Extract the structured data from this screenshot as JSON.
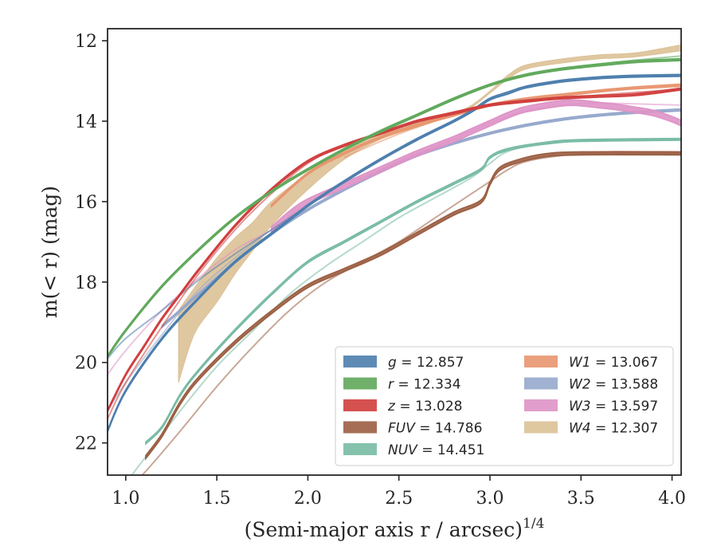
{
  "chart_data": {
    "type": "line",
    "xlabel": "(Semi-major axis r / arcsec)",
    "xlabel_exponent": "1/4",
    "ylabel": "m(< r) (mag)",
    "xlim": [
      0.9,
      4.05
    ],
    "ylim": [
      22.8,
      11.7
    ],
    "y_inverted": true,
    "grid": false,
    "legend_placement": "lower-right",
    "xticks": [
      "1.0",
      "1.5",
      "2.0",
      "2.5",
      "3.0",
      "3.5",
      "4.0"
    ],
    "yticks": [
      "12",
      "14",
      "16",
      "18",
      "20",
      "22"
    ],
    "series": [
      {
        "name": "g",
        "label": "= 12.857",
        "color": "#4c7ead",
        "band_width": 0.05,
        "main": [
          [
            0.9,
            21.7
          ],
          [
            1.0,
            20.7
          ],
          [
            1.2,
            19.4
          ],
          [
            1.4,
            18.4
          ],
          [
            1.6,
            17.5
          ],
          [
            1.8,
            16.8
          ],
          [
            2.0,
            16.1
          ],
          [
            2.2,
            15.5
          ],
          [
            2.4,
            14.95
          ],
          [
            2.6,
            14.45
          ],
          [
            2.8,
            14.0
          ],
          [
            2.9,
            13.75
          ],
          [
            3.0,
            13.45
          ],
          [
            3.1,
            13.3
          ],
          [
            3.2,
            13.15
          ],
          [
            3.4,
            13.0
          ],
          [
            3.6,
            12.92
          ],
          [
            3.8,
            12.88
          ],
          [
            4.05,
            12.86
          ]
        ],
        "faint": [
          [
            0.9,
            19.9
          ],
          [
            1.0,
            19.4
          ],
          [
            1.2,
            18.7
          ],
          [
            1.4,
            17.95
          ],
          [
            1.6,
            17.3
          ],
          [
            1.8,
            16.7
          ],
          [
            2.0,
            16.1
          ],
          [
            2.2,
            15.5
          ],
          [
            2.4,
            14.95
          ],
          [
            2.6,
            14.45
          ],
          [
            2.8,
            14.0
          ],
          [
            2.9,
            13.75
          ],
          [
            3.0,
            13.45
          ],
          [
            3.2,
            13.15
          ],
          [
            3.6,
            12.92
          ],
          [
            4.05,
            12.86
          ]
        ]
      },
      {
        "name": "r",
        "label": "= 12.334",
        "color": "#5fa85a",
        "band_width": 0.05,
        "main": [
          [
            0.9,
            19.85
          ],
          [
            1.0,
            19.2
          ],
          [
            1.2,
            18.1
          ],
          [
            1.4,
            17.2
          ],
          [
            1.6,
            16.4
          ],
          [
            1.8,
            15.75
          ],
          [
            2.0,
            15.2
          ],
          [
            2.2,
            14.7
          ],
          [
            2.4,
            14.25
          ],
          [
            2.6,
            13.85
          ],
          [
            2.8,
            13.45
          ],
          [
            3.0,
            13.1
          ],
          [
            3.2,
            12.85
          ],
          [
            3.4,
            12.7
          ],
          [
            3.6,
            12.6
          ],
          [
            3.8,
            12.52
          ],
          [
            4.05,
            12.47
          ]
        ],
        "faint": [
          [
            1.4,
            17.2
          ],
          [
            1.6,
            16.4
          ],
          [
            1.8,
            15.75
          ],
          [
            2.0,
            15.2
          ],
          [
            2.2,
            14.7
          ],
          [
            2.4,
            14.25
          ],
          [
            2.6,
            13.85
          ],
          [
            2.8,
            13.45
          ],
          [
            3.0,
            13.1
          ],
          [
            3.2,
            12.85
          ],
          [
            3.4,
            12.7
          ],
          [
            3.6,
            12.58
          ],
          [
            3.8,
            12.48
          ],
          [
            4.05,
            12.38
          ]
        ]
      },
      {
        "name": "z",
        "label": "= 13.028",
        "color": "#d03e3d",
        "band_width": 0.05,
        "main": [
          [
            0.9,
            21.2
          ],
          [
            1.0,
            20.3
          ],
          [
            1.1,
            19.6
          ],
          [
            1.2,
            18.9
          ],
          [
            1.3,
            18.3
          ],
          [
            1.4,
            17.7
          ],
          [
            1.6,
            16.6
          ],
          [
            1.8,
            15.7
          ],
          [
            2.0,
            15.0
          ],
          [
            2.2,
            14.6
          ],
          [
            2.4,
            14.3
          ],
          [
            2.6,
            14.0
          ],
          [
            2.8,
            13.8
          ],
          [
            3.0,
            13.6
          ],
          [
            3.2,
            13.5
          ],
          [
            3.4,
            13.42
          ],
          [
            3.6,
            13.38
          ],
          [
            3.8,
            13.34
          ],
          [
            4.05,
            13.2
          ]
        ],
        "faint": [
          [
            0.9,
            21.4
          ],
          [
            1.0,
            20.5
          ],
          [
            1.2,
            19.1
          ],
          [
            1.4,
            17.8
          ],
          [
            1.6,
            16.7
          ],
          [
            1.8,
            15.8
          ],
          [
            2.0,
            15.05
          ],
          [
            2.2,
            14.6
          ],
          [
            2.6,
            14.0
          ],
          [
            3.0,
            13.6
          ],
          [
            3.4,
            13.42
          ],
          [
            4.05,
            13.2
          ]
        ]
      },
      {
        "name": "FUV",
        "label": "= 14.786",
        "color": "#9b5e42",
        "band_width": 0.08,
        "main": [
          [
            1.11,
            22.35
          ],
          [
            1.2,
            21.8
          ],
          [
            1.3,
            21.0
          ],
          [
            1.4,
            20.4
          ],
          [
            1.6,
            19.5
          ],
          [
            1.8,
            18.75
          ],
          [
            2.0,
            18.1
          ],
          [
            2.2,
            17.7
          ],
          [
            2.4,
            17.3
          ],
          [
            2.6,
            16.8
          ],
          [
            2.8,
            16.3
          ],
          [
            2.95,
            16.0
          ],
          [
            3.0,
            15.55
          ],
          [
            3.05,
            15.2
          ],
          [
            3.15,
            15.0
          ],
          [
            3.3,
            14.85
          ],
          [
            3.5,
            14.8
          ],
          [
            4.05,
            14.8
          ]
        ],
        "faint": [
          [
            1.05,
            23.0
          ],
          [
            1.15,
            22.5
          ],
          [
            1.3,
            21.7
          ],
          [
            1.5,
            20.6
          ],
          [
            1.7,
            19.6
          ],
          [
            1.9,
            18.7
          ],
          [
            2.1,
            18.0
          ],
          [
            2.3,
            17.5
          ],
          [
            2.5,
            17.0
          ],
          [
            2.7,
            16.4
          ],
          [
            2.9,
            15.8
          ],
          [
            3.0,
            15.5
          ],
          [
            3.1,
            15.2
          ],
          [
            3.2,
            15.0
          ],
          [
            3.4,
            14.85
          ],
          [
            3.6,
            14.8
          ],
          [
            4.05,
            14.8
          ]
        ]
      },
      {
        "name": "NUV",
        "label": "= 14.451",
        "color": "#78bba3",
        "band_width": 0.05,
        "main": [
          [
            1.11,
            22.0
          ],
          [
            1.2,
            21.6
          ],
          [
            1.3,
            20.8
          ],
          [
            1.4,
            20.2
          ],
          [
            1.6,
            19.2
          ],
          [
            1.8,
            18.3
          ],
          [
            2.0,
            17.5
          ],
          [
            2.2,
            17.0
          ],
          [
            2.4,
            16.5
          ],
          [
            2.6,
            16.0
          ],
          [
            2.8,
            15.55
          ],
          [
            2.95,
            15.2
          ],
          [
            3.0,
            14.9
          ],
          [
            3.1,
            14.7
          ],
          [
            3.3,
            14.55
          ],
          [
            3.5,
            14.48
          ],
          [
            4.05,
            14.45
          ]
        ],
        "faint": [
          [
            1.0,
            23.0
          ],
          [
            1.1,
            22.4
          ],
          [
            1.3,
            21.2
          ],
          [
            1.5,
            20.1
          ],
          [
            1.7,
            19.2
          ],
          [
            1.9,
            18.3
          ],
          [
            2.1,
            17.6
          ],
          [
            2.3,
            17.0
          ],
          [
            2.5,
            16.4
          ],
          [
            2.7,
            15.9
          ],
          [
            2.9,
            15.4
          ],
          [
            3.0,
            15.05
          ],
          [
            3.1,
            14.75
          ],
          [
            3.3,
            14.55
          ],
          [
            3.6,
            14.48
          ],
          [
            4.05,
            14.45
          ]
        ]
      },
      {
        "name": "W1",
        "label": "= 13.067",
        "color": "#e8956f",
        "band_width": 0.05,
        "main": [
          [
            1.8,
            16.1
          ],
          [
            2.0,
            15.3
          ],
          [
            2.2,
            14.8
          ],
          [
            2.4,
            14.4
          ],
          [
            2.6,
            14.1
          ],
          [
            2.8,
            13.85
          ],
          [
            3.0,
            13.6
          ],
          [
            3.2,
            13.45
          ],
          [
            3.4,
            13.35
          ],
          [
            3.6,
            13.25
          ],
          [
            3.8,
            13.17
          ],
          [
            4.05,
            13.1
          ]
        ],
        "faint": [
          [
            2.2,
            14.9
          ],
          [
            2.4,
            14.5
          ],
          [
            2.6,
            14.15
          ],
          [
            2.8,
            13.85
          ],
          [
            3.0,
            13.6
          ],
          [
            3.2,
            13.42
          ],
          [
            3.4,
            13.32
          ],
          [
            3.6,
            13.24
          ],
          [
            4.05,
            13.14
          ]
        ]
      },
      {
        "name": "W2",
        "label": "= 13.588",
        "color": "#96a8cc",
        "band_width": 0.05,
        "main": [
          [
            1.2,
            19.1
          ],
          [
            1.4,
            18.3
          ],
          [
            1.6,
            17.5
          ],
          [
            1.8,
            16.8
          ],
          [
            2.0,
            16.2
          ],
          [
            2.2,
            15.7
          ],
          [
            2.4,
            15.25
          ],
          [
            2.6,
            14.85
          ],
          [
            2.8,
            14.55
          ],
          [
            3.0,
            14.3
          ],
          [
            3.2,
            14.1
          ],
          [
            3.4,
            13.95
          ],
          [
            3.6,
            13.85
          ],
          [
            3.8,
            13.78
          ],
          [
            4.05,
            13.72
          ]
        ],
        "faint": [
          [
            0.9,
            21.2
          ],
          [
            1.0,
            20.5
          ],
          [
            1.2,
            19.3
          ],
          [
            1.4,
            18.2
          ],
          [
            1.6,
            17.4
          ],
          [
            1.8,
            16.7
          ],
          [
            2.0,
            16.2
          ],
          [
            2.2,
            15.7
          ],
          [
            2.4,
            15.25
          ],
          [
            2.6,
            14.85
          ],
          [
            2.8,
            14.55
          ],
          [
            3.0,
            14.3
          ],
          [
            3.2,
            14.1
          ],
          [
            3.6,
            13.85
          ],
          [
            4.05,
            13.72
          ]
        ]
      },
      {
        "name": "W3",
        "label": "= 13.597",
        "color": "#de93c7",
        "band_width": 0.14,
        "main": [
          [
            1.8,
            16.7
          ],
          [
            1.9,
            16.3
          ],
          [
            2.0,
            16.0
          ],
          [
            2.2,
            15.6
          ],
          [
            2.4,
            15.2
          ],
          [
            2.6,
            14.8
          ],
          [
            2.8,
            14.45
          ],
          [
            2.9,
            14.25
          ],
          [
            3.0,
            14.05
          ],
          [
            3.1,
            13.85
          ],
          [
            3.2,
            13.7
          ],
          [
            3.4,
            13.55
          ],
          [
            3.5,
            13.55
          ],
          [
            3.6,
            13.6
          ],
          [
            3.7,
            13.65
          ],
          [
            3.8,
            13.72
          ],
          [
            3.9,
            13.8
          ],
          [
            4.0,
            13.95
          ],
          [
            4.05,
            14.05
          ]
        ],
        "faint": [
          [
            0.9,
            20.3
          ],
          [
            1.0,
            19.7
          ],
          [
            1.2,
            18.7
          ],
          [
            1.4,
            17.9
          ],
          [
            1.6,
            17.2
          ],
          [
            1.8,
            16.7
          ],
          [
            2.0,
            16.1
          ],
          [
            2.2,
            15.6
          ],
          [
            2.4,
            15.2
          ],
          [
            2.6,
            14.8
          ],
          [
            2.8,
            14.45
          ],
          [
            3.0,
            14.05
          ],
          [
            3.2,
            13.75
          ],
          [
            3.4,
            13.6
          ],
          [
            3.6,
            13.55
          ],
          [
            3.8,
            13.57
          ],
          [
            4.05,
            13.6
          ]
        ]
      },
      {
        "name": "W4",
        "label": "= 12.307",
        "color": "#dcc196",
        "band_width": 0.22,
        "envelope_upper": [
          [
            1.29,
            18.7
          ],
          [
            1.4,
            18.0
          ],
          [
            1.5,
            17.4
          ],
          [
            1.6,
            16.9
          ],
          [
            1.7,
            16.5
          ],
          [
            1.8,
            16.0
          ],
          [
            2.0,
            15.3
          ],
          [
            2.2,
            14.7
          ],
          [
            2.4,
            14.3
          ],
          [
            2.6,
            14.05
          ],
          [
            2.8,
            13.8
          ],
          [
            2.9,
            13.6
          ],
          [
            3.0,
            13.25
          ],
          [
            3.1,
            12.85
          ],
          [
            3.2,
            12.6
          ],
          [
            3.4,
            12.45
          ],
          [
            3.6,
            12.35
          ],
          [
            3.8,
            12.3
          ],
          [
            4.05,
            12.1
          ]
        ],
        "envelope_lower": [
          [
            1.29,
            20.5
          ],
          [
            1.35,
            19.6
          ],
          [
            1.4,
            19.1
          ],
          [
            1.5,
            18.5
          ],
          [
            1.6,
            17.8
          ],
          [
            1.7,
            17.2
          ],
          [
            1.8,
            16.6
          ],
          [
            2.0,
            15.7
          ],
          [
            2.2,
            14.95
          ],
          [
            2.4,
            14.45
          ],
          [
            2.6,
            14.15
          ],
          [
            2.8,
            13.85
          ],
          [
            2.9,
            13.65
          ],
          [
            3.0,
            13.3
          ],
          [
            3.1,
            12.95
          ],
          [
            3.2,
            12.7
          ],
          [
            3.4,
            12.55
          ],
          [
            3.6,
            12.45
          ],
          [
            3.8,
            12.4
          ],
          [
            4.05,
            12.25
          ]
        ]
      }
    ]
  }
}
